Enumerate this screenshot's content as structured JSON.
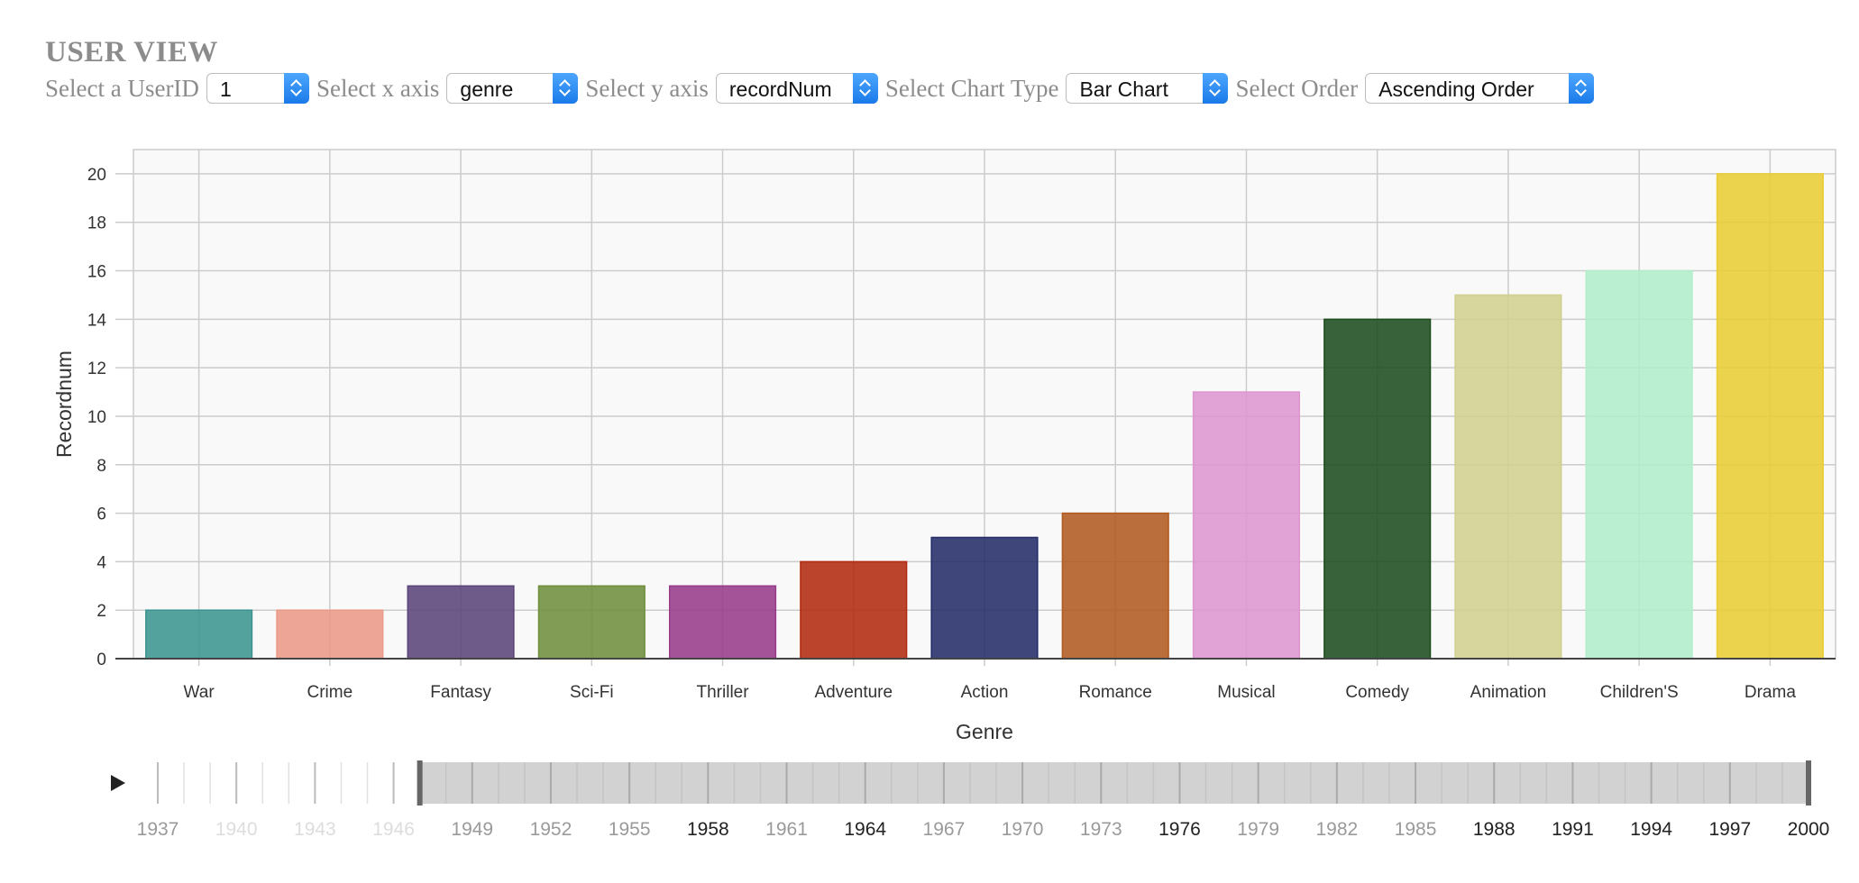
{
  "page": {
    "title": "USER VIEW"
  },
  "controls": [
    {
      "label": "Select a UserID",
      "value": "1",
      "name": "userid"
    },
    {
      "label": "Select x axis",
      "value": "genre",
      "name": "x-axis"
    },
    {
      "label": "Select y axis",
      "value": "recordNum",
      "name": "y-axis"
    },
    {
      "label": "Select Chart Type",
      "value": "Bar Chart",
      "name": "chart-type"
    },
    {
      "label": "Select Order",
      "value": "Ascending Order",
      "name": "order"
    }
  ],
  "chart_data": {
    "type": "bar",
    "categories": [
      "War",
      "Crime",
      "Fantasy",
      "Sci-Fi",
      "Thriller",
      "Adventure",
      "Action",
      "Romance",
      "Musical",
      "Comedy",
      "Animation",
      "Children'S",
      "Drama"
    ],
    "values": [
      2,
      2,
      3,
      3,
      3,
      4,
      5,
      6,
      11,
      14,
      15,
      16,
      20
    ],
    "colors": [
      "#3b9590",
      "#eb9a87",
      "#5b4479",
      "#6f8f3d",
      "#993b8a",
      "#b22a10",
      "#232c68",
      "#b05a20",
      "#dd95d0",
      "#1d4c1e",
      "#d0d08f",
      "#b2edcb",
      "#e8cd35"
    ],
    "xlabel": "Genre",
    "ylabel": "Recordnum",
    "ylim": [
      0,
      21
    ],
    "yticks": [
      0,
      2,
      4,
      6,
      8,
      10,
      12,
      14,
      16,
      18,
      20
    ],
    "grid": true,
    "plot_background": "#f9f9f9",
    "grid_color": "#cccccc"
  },
  "timeline": {
    "play_icon": "play-icon",
    "start_year": 1937,
    "end_year": 2000,
    "range": [
      1947,
      2000
    ],
    "labels": [
      {
        "year": "1937",
        "color": "#9a9a9a"
      },
      {
        "year": "1940",
        "color": "#dddddd"
      },
      {
        "year": "1943",
        "color": "#dddddd"
      },
      {
        "year": "1946",
        "color": "#dddddd"
      },
      {
        "year": "1949",
        "color": "#9a9a9a"
      },
      {
        "year": "1952",
        "color": "#9a9a9a"
      },
      {
        "year": "1955",
        "color": "#9a9a9a"
      },
      {
        "year": "1958",
        "color": "#222222"
      },
      {
        "year": "1961",
        "color": "#9a9a9a"
      },
      {
        "year": "1964",
        "color": "#222222"
      },
      {
        "year": "1967",
        "color": "#9a9a9a"
      },
      {
        "year": "1970",
        "color": "#9a9a9a"
      },
      {
        "year": "1973",
        "color": "#9a9a9a"
      },
      {
        "year": "1976",
        "color": "#222222"
      },
      {
        "year": "1979",
        "color": "#9a9a9a"
      },
      {
        "year": "1982",
        "color": "#9a9a9a"
      },
      {
        "year": "1985",
        "color": "#9a9a9a"
      },
      {
        "year": "1988",
        "color": "#222222"
      },
      {
        "year": "1991",
        "color": "#222222"
      },
      {
        "year": "1994",
        "color": "#222222"
      },
      {
        "year": "1997",
        "color": "#222222"
      },
      {
        "year": "2000",
        "color": "#222222"
      }
    ]
  }
}
